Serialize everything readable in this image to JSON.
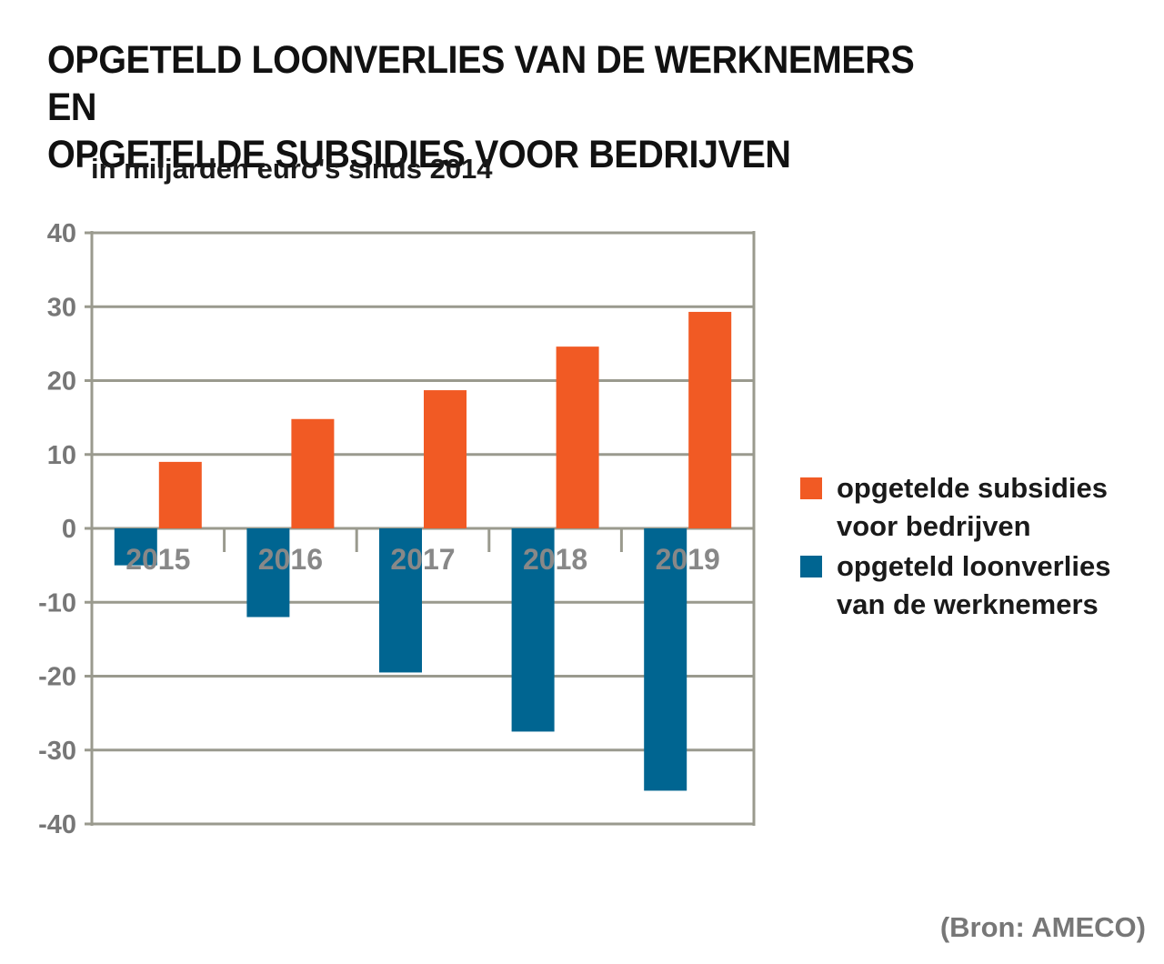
{
  "title_line1": "OPGETELD LOONVERLIES VAN DE WERKNEMERS EN",
  "title_line2": "OPGETELDE SUBSIDIES VOOR BEDRIJVEN",
  "subtitle": "in miljarden euro's sinds 2014",
  "source": "(Bron: AMECO)",
  "chart_data": {
    "type": "bar",
    "title": "OPGETELD LOONVERLIES VAN DE WERKNEMERS EN OPGETELDE SUBSIDIES VOOR BEDRIJVEN",
    "subtitle": "in miljarden euro's sinds 2014",
    "categories": [
      "2015",
      "2016",
      "2017",
      "2018",
      "2019"
    ],
    "series": [
      {
        "name": "opgeteld loonverlies van de werknemers",
        "values": [
          -5,
          -12,
          -19.5,
          -27.5,
          -35.5
        ],
        "color": "#006591"
      },
      {
        "name": "opgetelde subsidies voor bedrijven",
        "values": [
          9,
          14.8,
          18.7,
          24.6,
          29.3
        ],
        "color": "#f15a24"
      }
    ],
    "ylim": [
      -40,
      40
    ],
    "yticks": [
      40,
      30,
      20,
      10,
      0,
      -10,
      -20,
      -30,
      -40
    ],
    "grid": true,
    "legend_position": "right",
    "legend": [
      {
        "line1": "opgetelde subsidies",
        "line2": "voor bedrijven",
        "color": "#f15a24"
      },
      {
        "line1": "opgeteld loonverlies",
        "line2": "van de werknemers",
        "color": "#006591"
      }
    ]
  }
}
